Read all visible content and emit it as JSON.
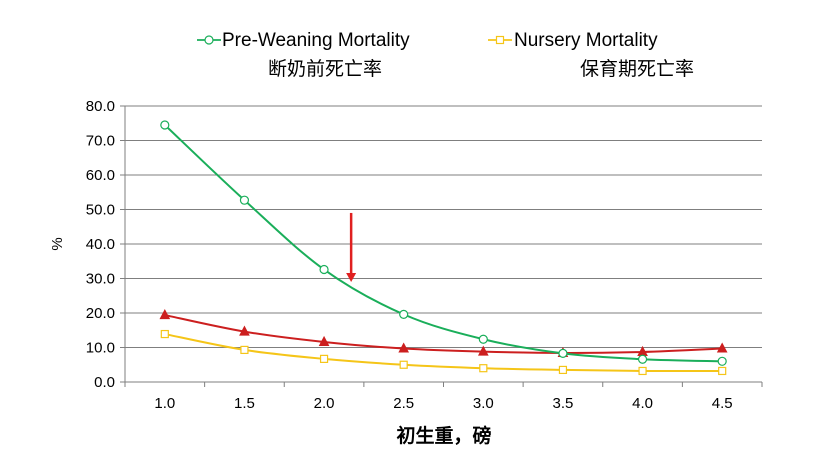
{
  "chart_data": {
    "type": "line",
    "title": "",
    "xlabel": "初生重，磅",
    "ylabel": "%",
    "x": [
      1.0,
      1.5,
      2.0,
      2.5,
      3.0,
      3.5,
      4.0,
      4.5
    ],
    "x_tick_labels": [
      "1.0",
      "1.5",
      "2.0",
      "2.5",
      "3.0",
      "3.5",
      "4.0",
      "4.5"
    ],
    "ylim": [
      0,
      80
    ],
    "y_ticks": [
      0,
      10,
      20,
      30,
      40,
      50,
      60,
      70,
      80
    ],
    "y_tick_labels": [
      "0.0",
      "10.0",
      "20.0",
      "30.0",
      "40.0",
      "50.0",
      "60.0",
      "70.0",
      "80.0"
    ],
    "grid": "horizontal",
    "legend_position": "top",
    "series": [
      {
        "name": "Pre-Weaning Mortality",
        "name_cn": "断奶前死亡率",
        "color": "#1aae5a",
        "marker": "circle",
        "values": [
          74.5,
          52.7,
          32.6,
          19.6,
          12.4,
          8.3,
          6.6,
          6.0
        ]
      },
      {
        "name": "Nursery Mortality",
        "name_cn": "保育期死亡率",
        "color": "#f5c518",
        "marker": "square",
        "values": [
          13.9,
          9.3,
          6.7,
          5.0,
          4.0,
          3.5,
          3.2,
          3.2
        ]
      },
      {
        "name": "",
        "color": "#cc1f1f",
        "marker": "triangle",
        "values": [
          19.4,
          14.6,
          11.6,
          9.7,
          8.8,
          8.4,
          8.7,
          9.7
        ]
      }
    ],
    "annotations": [
      {
        "type": "arrow",
        "color": "#e02020",
        "x": 2.17,
        "y_from": 49,
        "y_to": 29
      }
    ]
  }
}
